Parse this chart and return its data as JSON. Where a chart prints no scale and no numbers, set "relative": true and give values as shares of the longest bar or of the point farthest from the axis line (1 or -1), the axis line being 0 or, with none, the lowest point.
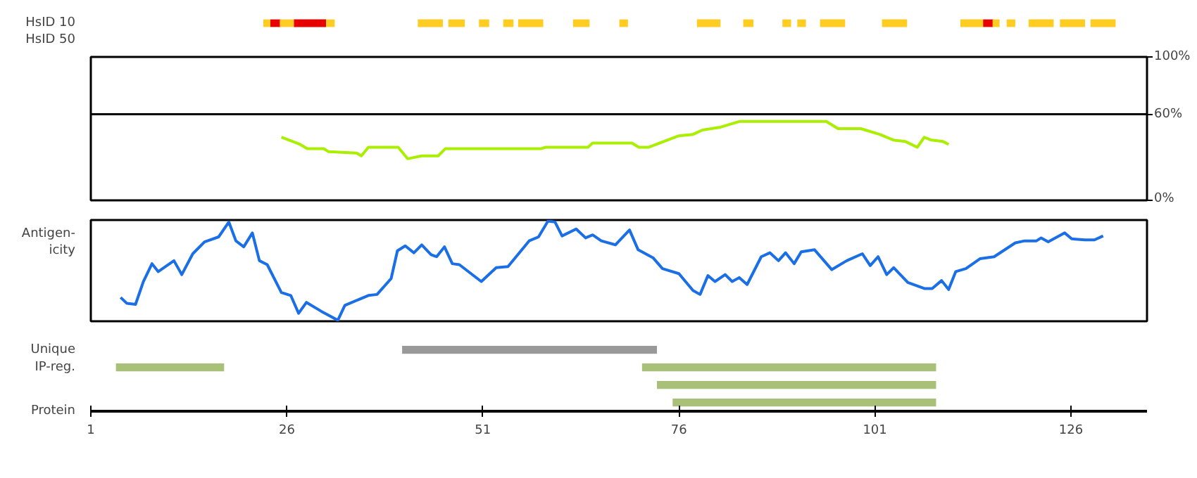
{
  "chart_data": [
    {
      "type": "bar",
      "orientation": "horizontal",
      "categories": [
        "HsID 10",
        "HsID 50"
      ],
      "xlim": [
        1,
        135.7
      ],
      "tick_labels": "y",
      "series": [
        {
          "color": "#ffcc22",
          "values": [
            0.9,
            null
          ],
          "base": [
            23.0,
            null
          ]
        },
        {
          "color": "#e60000",
          "values": [
            1.3,
            null
          ],
          "base": [
            23.9,
            null
          ]
        },
        {
          "color": "#ffcc22",
          "values": [
            1.8,
            null
          ],
          "base": [
            25.1,
            null
          ]
        },
        {
          "color": "#e60000",
          "values": [
            4.1,
            null
          ],
          "base": [
            26.9,
            null
          ]
        },
        {
          "color": "#ffcc22",
          "values": [
            1.1,
            null
          ],
          "base": [
            31.0,
            null
          ]
        },
        {
          "color": "#ffcc22",
          "values": [
            3.2,
            null
          ],
          "base": [
            42.7,
            null
          ]
        },
        {
          "color": "#ffcc22",
          "values": [
            2.1,
            null
          ],
          "base": [
            46.6,
            null
          ]
        },
        {
          "color": "#ffcc22",
          "values": [
            1.3,
            null
          ],
          "base": [
            50.5,
            null
          ]
        },
        {
          "color": "#ffcc22",
          "values": [
            1.3,
            null
          ],
          "base": [
            53.6,
            null
          ]
        },
        {
          "color": "#ffcc22",
          "values": [
            3.2,
            null
          ],
          "base": [
            55.5,
            null
          ]
        },
        {
          "color": "#ffcc22",
          "values": [
            2.1,
            null
          ],
          "base": [
            62.5,
            null
          ]
        },
        {
          "color": "#ffcc22",
          "values": [
            1.1,
            null
          ],
          "base": [
            68.4,
            null
          ]
        },
        {
          "color": "#ffcc22",
          "values": [
            3.0,
            null
          ],
          "base": [
            78.3,
            null
          ]
        },
        {
          "color": "#ffcc22",
          "values": [
            1.3,
            null
          ],
          "base": [
            84.2,
            null
          ]
        },
        {
          "color": "#ffcc22",
          "values": [
            1.1,
            null
          ],
          "base": [
            89.2,
            null
          ]
        },
        {
          "color": "#ffcc22",
          "values": [
            1.1,
            null
          ],
          "base": [
            91.1,
            null
          ]
        },
        {
          "color": "#ffcc22",
          "values": [
            3.2,
            null
          ],
          "base": [
            94.0,
            null
          ]
        },
        {
          "color": "#ffcc22",
          "values": [
            3.2,
            null
          ],
          "base": [
            101.9,
            null
          ]
        },
        {
          "color": "#ffcc22",
          "values": [
            2.9,
            null
          ],
          "base": [
            111.9,
            null
          ]
        },
        {
          "color": "#e60000",
          "values": [
            1.3,
            null
          ],
          "base": [
            114.8,
            null
          ]
        },
        {
          "color": "#ffcc22",
          "values": [
            0.9,
            null
          ],
          "base": [
            116.0,
            null
          ]
        },
        {
          "color": "#ffcc22",
          "values": [
            1.1,
            null
          ],
          "base": [
            117.8,
            null
          ]
        },
        {
          "color": "#ffcc22",
          "values": [
            3.2,
            null
          ],
          "base": [
            120.6,
            null
          ]
        },
        {
          "color": "#ffcc22",
          "values": [
            3.2,
            null
          ],
          "base": [
            124.6,
            null
          ]
        },
        {
          "color": "#ffcc22",
          "values": [
            3.2,
            null
          ],
          "base": [
            128.5,
            null
          ]
        }
      ]
    },
    {
      "type": "line",
      "xlim": [
        1,
        135.7
      ],
      "ylim": [
        0,
        100
      ],
      "yticks": [
        {
          "value": 0,
          "label": "0%"
        },
        {
          "value": 60,
          "label": "60%"
        },
        {
          "value": 100,
          "label": "100%"
        }
      ],
      "tick_labels": "y",
      "ref_lines": [
        {
          "axis": "y",
          "value": 60,
          "color": "#000000"
        }
      ],
      "series": [
        {
          "color": "#aaee00",
          "x": [
            25.3,
            27.7,
            28.6,
            30.7,
            31.3,
            34.9,
            35.5,
            36.4,
            40.2,
            41.4,
            43.2,
            45.3,
            46.2,
            58.4,
            59.0,
            64.4,
            65.0,
            70.0,
            70.3,
            70.9,
            72.1,
            76.0,
            77.8,
            79.0,
            81.3,
            83.7,
            94.8,
            96.3,
            99.2,
            101.6,
            103.4,
            104.9,
            106.4,
            107.3,
            108.2,
            109.7,
            110.4
          ],
          "values": [
            44,
            39,
            36,
            36,
            34,
            33,
            31,
            37,
            37,
            29,
            31,
            31,
            36,
            36,
            37,
            37,
            40,
            40,
            39,
            37,
            37,
            45,
            46,
            49,
            51,
            55,
            55,
            50,
            50,
            46,
            42,
            41,
            37,
            44,
            42,
            41,
            39
          ]
        }
      ]
    },
    {
      "type": "line",
      "relative": true,
      "ylabel": "Antigen-\nicity",
      "xlim": [
        1,
        135.7
      ],
      "tick_labels": false,
      "series": [
        {
          "color": "#1a6ee6",
          "x": [
            4.8,
            5.6,
            6.7,
            7.7,
            8.8,
            9.6,
            11.6,
            12.6,
            14.0,
            15.5,
            17.3,
            18.6,
            19.5,
            20.5,
            21.6,
            22.5,
            23.5,
            25.3,
            26.5,
            27.5,
            28.5,
            30.4,
            32.5,
            33.4,
            36.4,
            37.5,
            39.3,
            40.1,
            41.1,
            42.2,
            43.2,
            44.4,
            45.1,
            46.1,
            47.1,
            48.0,
            50.8,
            52.7,
            54.2,
            56.9,
            58.1,
            59.3,
            60.2,
            61.1,
            62.9,
            64.1,
            65.0,
            66.1,
            67.9,
            69.7,
            70.8,
            72.7,
            73.9,
            76.0,
            77.8,
            78.7,
            79.7,
            80.6,
            81.9,
            82.8,
            83.7,
            84.7,
            86.5,
            87.6,
            88.7,
            89.6,
            90.7,
            91.6,
            93.3,
            95.5,
            97.4,
            99.4,
            100.4,
            101.4,
            102.5,
            103.4,
            105.2,
            107.3,
            108.3,
            109.5,
            110.4,
            111.3,
            112.6,
            114.4,
            116.2,
            118.9,
            120.1,
            121.6,
            122.2,
            123.1,
            125.2,
            126.1,
            127.8,
            129.0,
            130.1
          ],
          "values": [
            0.23,
            0.17,
            0.16,
            0.39,
            0.57,
            0.49,
            0.6,
            0.46,
            0.67,
            0.79,
            0.84,
            0.99,
            0.8,
            0.74,
            0.88,
            0.6,
            0.56,
            0.28,
            0.25,
            0.07,
            0.18,
            0.09,
            0,
            0.15,
            0.25,
            0.26,
            0.42,
            0.7,
            0.75,
            0.68,
            0.76,
            0.66,
            0.64,
            0.74,
            0.57,
            0.56,
            0.39,
            0.53,
            0.54,
            0.8,
            0.84,
            1,
            0.99,
            0.85,
            0.92,
            0.83,
            0.86,
            0.8,
            0.76,
            0.91,
            0.71,
            0.63,
            0.52,
            0.47,
            0.3,
            0.26,
            0.45,
            0.39,
            0.46,
            0.39,
            0.43,
            0.36,
            0.64,
            0.68,
            0.6,
            0.68,
            0.57,
            0.69,
            0.71,
            0.51,
            0.6,
            0.67,
            0.55,
            0.64,
            0.46,
            0.53,
            0.38,
            0.32,
            0.32,
            0.4,
            0.31,
            0.49,
            0.52,
            0.62,
            0.64,
            0.78,
            0.8,
            0.8,
            0.83,
            0.79,
            0.88,
            0.82,
            0.81,
            0.81,
            0.85
          ]
        }
      ]
    },
    {
      "type": "bar",
      "orientation": "horizontal",
      "categories": [
        "Unique",
        "IP-reg.",
        null,
        null
      ],
      "xlim": [
        1,
        135.7
      ],
      "xticks": [
        1,
        26,
        51,
        76,
        101,
        126
      ],
      "annotations": [
        "Protein"
      ],
      "series": [
        {
          "color": "#999999",
          "values": [
            32.5,
            null,
            null,
            null
          ],
          "base": [
            40.7,
            null,
            null,
            null
          ]
        },
        {
          "color": "#a8c078",
          "values": [
            null,
            13.8,
            null,
            null
          ],
          "base": [
            null,
            4.2,
            null,
            null
          ]
        },
        {
          "color": "#a8c078",
          "values": [
            null,
            37.5,
            35.6,
            33.6
          ],
          "base": [
            null,
            71.3,
            73.2,
            75.2
          ]
        }
      ]
    }
  ]
}
